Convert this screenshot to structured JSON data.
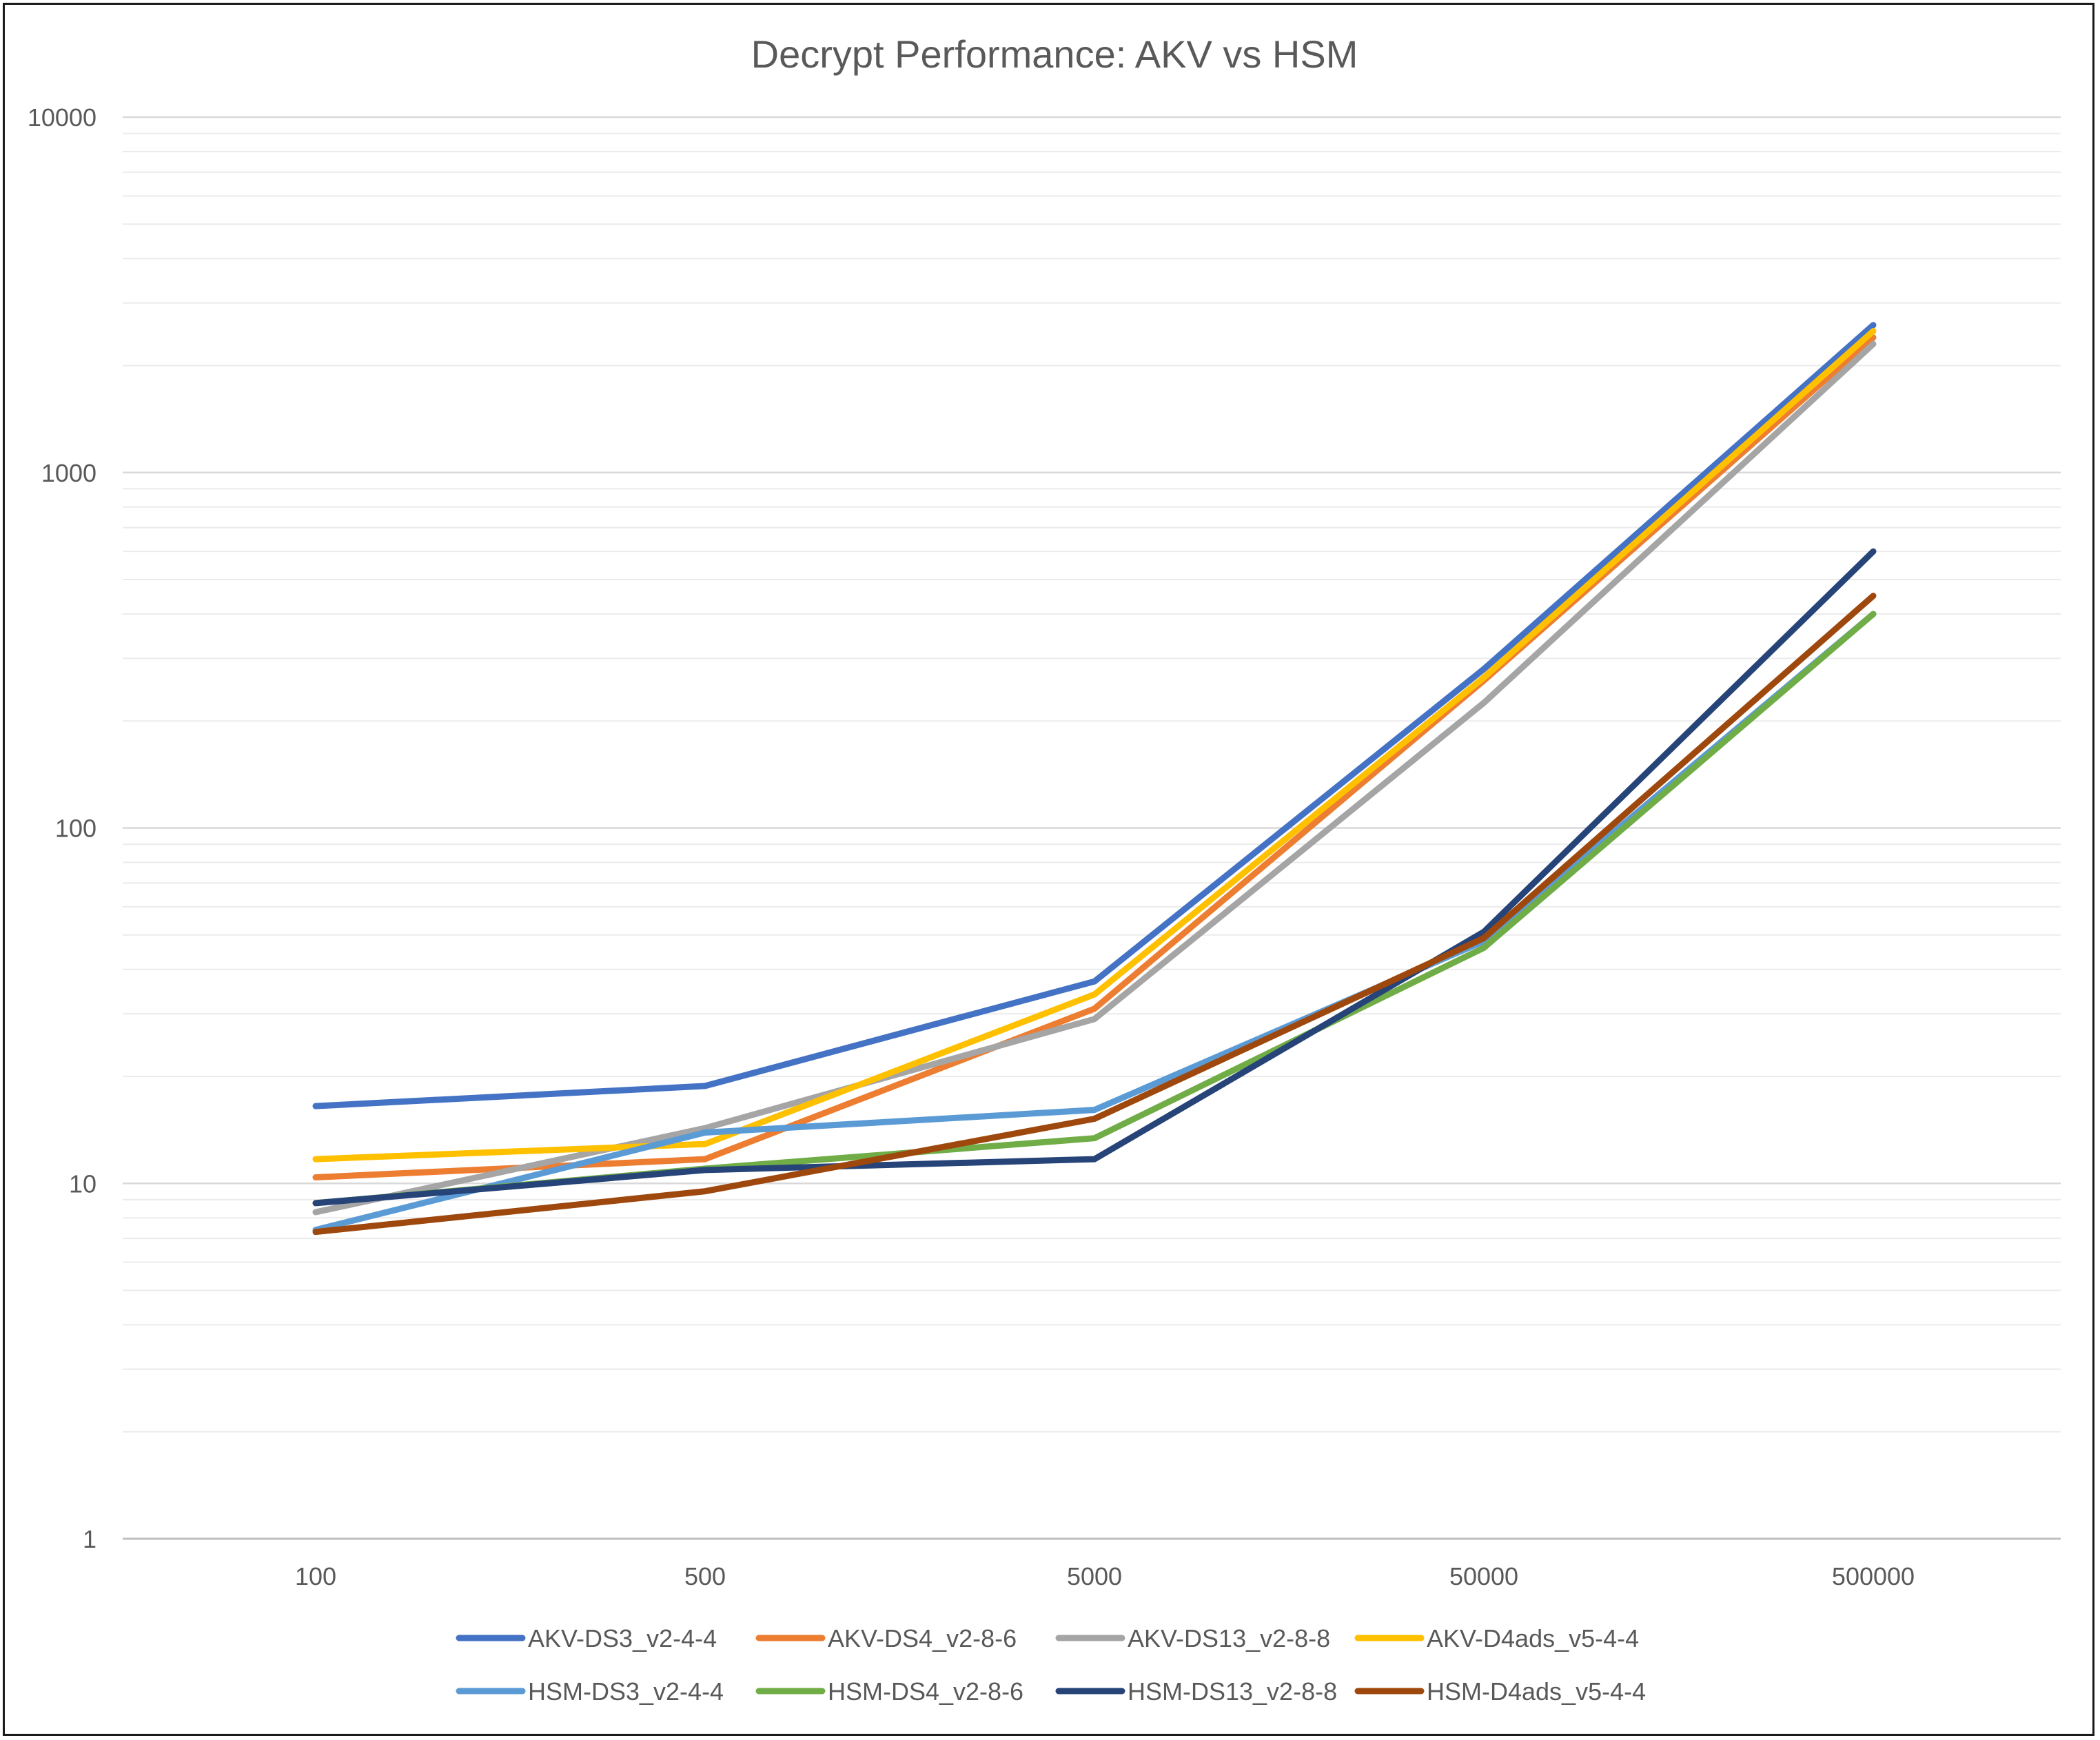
{
  "chart_data": {
    "type": "line",
    "title": "Decrypt Performance: AKV vs HSM",
    "xlabel": "",
    "ylabel": "",
    "y_scale": "log",
    "ylim": [
      1,
      10000
    ],
    "y_ticks": [
      "1",
      "10",
      "100",
      "1000",
      "10000"
    ],
    "categories": [
      "100",
      "500",
      "5000",
      "50000",
      "500000"
    ],
    "grid": "major and minor horizontal gridlines",
    "legend_position": "bottom",
    "series": [
      {
        "name": "AKV-DS3_v2-4-4",
        "color": "#4472C4",
        "values": [
          16.5,
          18.8,
          37,
          280,
          2600
        ]
      },
      {
        "name": "AKV-DS4_v2-8-6",
        "color": "#ED7D31",
        "values": [
          10.4,
          11.7,
          31,
          260,
          2400
        ]
      },
      {
        "name": "AKV-DS13_v2-8-8",
        "color": "#A5A5A5",
        "values": [
          8.3,
          14.3,
          29,
          225,
          2300
        ]
      },
      {
        "name": "AKV-D4ads_v5-4-4",
        "color": "#FFC000",
        "values": [
          11.7,
          12.9,
          34,
          265,
          2500
        ]
      },
      {
        "name": "HSM-DS3_v2-4-4",
        "color": "#5B9BD5",
        "values": [
          7.4,
          13.9,
          16.1,
          48,
          400
        ]
      },
      {
        "name": "HSM-DS4_v2-8-6",
        "color": "#70AD47",
        "values": [
          8.8,
          11.0,
          13.4,
          46,
          400
        ]
      },
      {
        "name": "HSM-DS13_v2-8-8",
        "color": "#264478",
        "values": [
          8.8,
          10.9,
          11.7,
          51,
          600
        ]
      },
      {
        "name": "HSM-D4ads_v5-4-4",
        "color": "#9E480E",
        "values": [
          7.3,
          9.5,
          15.2,
          49,
          450
        ]
      }
    ]
  }
}
